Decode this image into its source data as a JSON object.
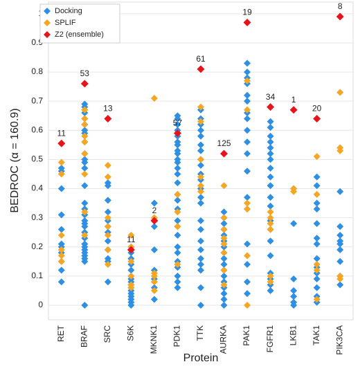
{
  "chart_data": {
    "type": "strip",
    "x_label": "Protein",
    "y_label": "BEDROC (α = 160.9)",
    "categories": [
      "RET",
      "BRAF",
      "SRC",
      "S6K",
      "MKNK1",
      "PDK1",
      "TTK",
      "AURKA",
      "PAK1",
      "FGFR1",
      "LKB1",
      "TAK1",
      "PIK3CA"
    ],
    "ylim": [
      -0.05,
      1.04
    ],
    "yticks": [
      0,
      0.1,
      0.2,
      0.3,
      0.4,
      0.5,
      0.6,
      0.7,
      0.8,
      0.9,
      1
    ],
    "grid": true,
    "legend": "upper left",
    "series": [
      {
        "name": "Docking",
        "color": "#2e8fe3",
        "values": [
          [
            0.47,
            0.46,
            0.4,
            0.31,
            0.26,
            0.21,
            0.2,
            0.18,
            0.15,
            0.12,
            0.08
          ],
          [
            0.69,
            0.68,
            0.66,
            0.64,
            0.62,
            0.6,
            0.59,
            0.56,
            0.52,
            0.5,
            0.49,
            0.47,
            0.41,
            0.35,
            0.33,
            0.31,
            0.29,
            0.28,
            0.27,
            0.25,
            0.23,
            0.21,
            0.2,
            0.19,
            0.18,
            0.17,
            0.16,
            0.15,
            0.0
          ],
          [
            0.42,
            0.41,
            0.36,
            0.32,
            0.29,
            0.27,
            0.25,
            0.22,
            0.19,
            0.16,
            0.15,
            0.08
          ],
          [
            0.2,
            0.18,
            0.16,
            0.14,
            0.12,
            0.1,
            0.09,
            0.08,
            0.07,
            0.06,
            0.05,
            0.04,
            0.03,
            0.02,
            0.01,
            0.0
          ],
          [
            0.35,
            0.27,
            0.19,
            0.12,
            0.09,
            0.06,
            0.02
          ],
          [
            0.65,
            0.64,
            0.62,
            0.6,
            0.58,
            0.56,
            0.55,
            0.53,
            0.52,
            0.5,
            0.49,
            0.47,
            0.45,
            0.42,
            0.38,
            0.36,
            0.33,
            0.29,
            0.27,
            0.24,
            0.2,
            0.18,
            0.15,
            0.13,
            0.1,
            0.08,
            0.06
          ],
          [
            0.67,
            0.64,
            0.62,
            0.6,
            0.58,
            0.55,
            0.53,
            0.5,
            0.48,
            0.45,
            0.43,
            0.4,
            0.37,
            0.35,
            0.29,
            0.26,
            0.22,
            0.19,
            0.16,
            0.14,
            0.12,
            0.06,
            0.0
          ],
          [
            0.32,
            0.3,
            0.28,
            0.26,
            0.24,
            0.22,
            0.2,
            0.18,
            0.16,
            0.14,
            0.12,
            0.1,
            0.08,
            0.06,
            0.04,
            0.02,
            0.0
          ],
          [
            0.83,
            0.8,
            0.78,
            0.76,
            0.72,
            0.7,
            0.66,
            0.64,
            0.6,
            0.56,
            0.52,
            0.46,
            0.37,
            0.33,
            0.21,
            0.14,
            0.08,
            0.04
          ],
          [
            0.63,
            0.61,
            0.58,
            0.56,
            0.54,
            0.52,
            0.5,
            0.47,
            0.44,
            0.41,
            0.37,
            0.34,
            0.29,
            0.26,
            0.22,
            0.17,
            0.11,
            0.09,
            0.07,
            0.05
          ],
          [
            0.4,
            0.28,
            0.09,
            0.05,
            0.03,
            0.01,
            0.0
          ],
          [
            0.44,
            0.41,
            0.35,
            0.33,
            0.28,
            0.23,
            0.21,
            0.16,
            0.13,
            0.11,
            0.09,
            0.06,
            0.03,
            0.01
          ],
          [
            0.39,
            0.27,
            0.24,
            0.22,
            0.21,
            0.19,
            0.15,
            0.1,
            0.07
          ]
        ]
      },
      {
        "name": "SPLIF",
        "color": "#f5a623",
        "values": [
          [
            0.49,
            0.45,
            0.24,
            0.19,
            0.17,
            0.15
          ],
          [
            0.67,
            0.64,
            0.62,
            0.58,
            0.56,
            0.52,
            0.45,
            0.32,
            0.24
          ],
          [
            0.48,
            0.44,
            0.3,
            0.27,
            0.24,
            0.19,
            0.14
          ],
          [
            0.24,
            0.2,
            0.15,
            0.1,
            0.07,
            0.06
          ],
          [
            0.71,
            0.3,
            0.11,
            0.1,
            0.08,
            0.05
          ],
          [
            0.38,
            0.32,
            0.27,
            0.14
          ],
          [
            0.68,
            0.63,
            0.5,
            0.44,
            0.41,
            0.39
          ],
          [
            0.41,
            0.3,
            0.26,
            0.23,
            0.21,
            0.18,
            0.12,
            0.07
          ],
          [
            0.77,
            0.67,
            0.35,
            0.33,
            0.17,
            0.0
          ],
          [
            0.32,
            0.3,
            0.28,
            0.26,
            0.1,
            0.08
          ],
          [
            0.4,
            0.39
          ],
          [
            0.51,
            0.38,
            0.14,
            0.12,
            0.02
          ],
          [
            0.99,
            0.73,
            0.54,
            0.53,
            0.1,
            0.09
          ]
        ]
      },
      {
        "name": "Z2 (ensemble)",
        "color": "#e8141c",
        "values": [
          0.555,
          0.76,
          0.64,
          0.19,
          0.29,
          0.59,
          0.81,
          0.52,
          0.97,
          0.68,
          0.67,
          0.64,
          0.99
        ],
        "annotations": [
          11,
          53,
          13,
          11,
          2,
          57,
          61,
          125,
          19,
          34,
          1,
          20,
          8
        ]
      }
    ]
  }
}
